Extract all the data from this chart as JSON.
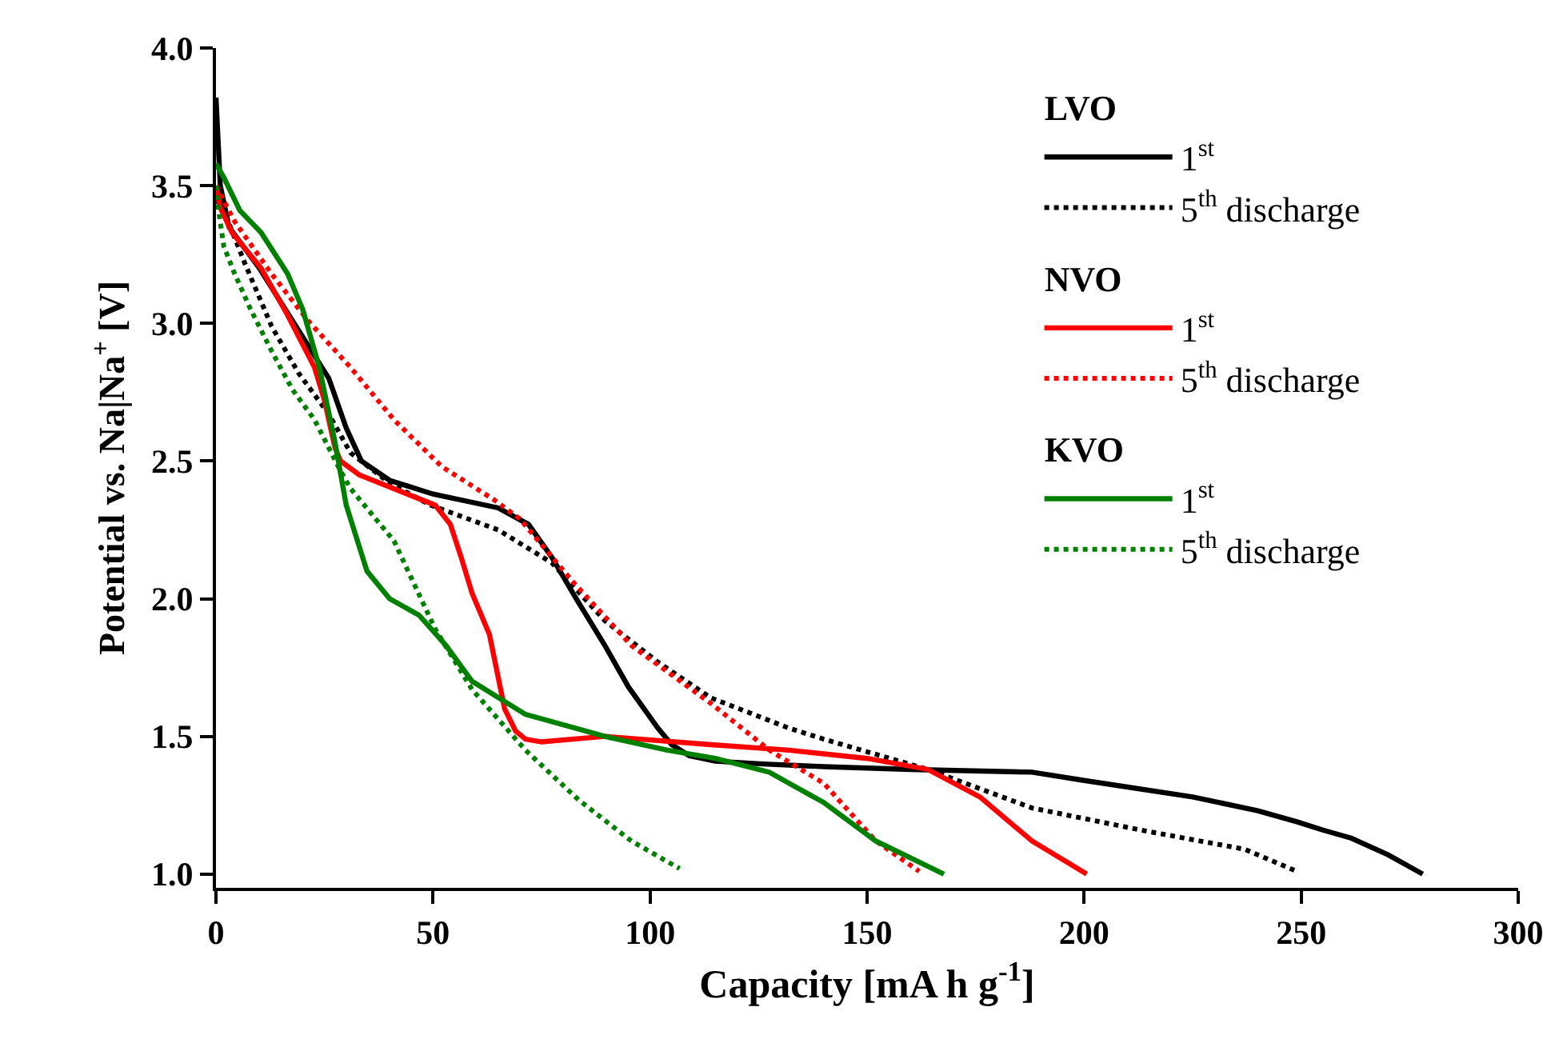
{
  "chart_data": {
    "type": "line",
    "xlabel": "Capacity [mA h g$^{-1}$]",
    "ylabel": "Potential vs. Na|Na$^{+}$ [V]",
    "xlim": [
      0,
      300
    ],
    "xticks": [
      0,
      50,
      100,
      150,
      200,
      250,
      300
    ],
    "ylim": [
      0.95,
      4.0
    ],
    "yticks": [
      {
        "value": 1,
        "label": "1.0"
      },
      1.5,
      {
        "value": 2,
        "label": "2.0"
      },
      2.5,
      {
        "value": 3,
        "label": "3.0"
      },
      3.5,
      {
        "value": 4,
        "label": "4.0"
      }
    ],
    "annotations": [
      "LVO",
      "NVO",
      "KVO"
    ],
    "legend": "top right",
    "marker": "none",
    "series": [
      {
        "name": "1$^{st}$",
        "color": "#000000",
        "line_style": "solid",
        "x": [
          0,
          1,
          3,
          10,
          20,
          26,
          30,
          33.5,
          40,
          50,
          65,
          72,
          77.4,
          83,
          89.6,
          95,
          101.8,
          105,
          109,
          115,
          126,
          140,
          160,
          188,
          200,
          225,
          240,
          249,
          255,
          261.6,
          270,
          278
        ],
        "values": [
          3.82,
          3.5,
          3.35,
          3.2,
          2.95,
          2.8,
          2.62,
          2.5,
          2.43,
          2.38,
          2.33,
          2.27,
          2.15,
          2.0,
          1.83,
          1.68,
          1.53,
          1.47,
          1.43,
          1.41,
          1.4,
          1.39,
          1.38,
          1.37,
          1.34,
          1.28,
          1.23,
          1.19,
          1.16,
          1.13,
          1.07,
          1.0
        ]
      },
      {
        "name": "5$^{th}$ discharge",
        "color": "#000000",
        "line_style": "dotted",
        "x": [
          0,
          1.8,
          6.6,
          12.8,
          19,
          26,
          31,
          40,
          49.4,
          65,
          77.4,
          89.6,
          101.8,
          114,
          132,
          140,
          164,
          188,
          213,
          237,
          249
        ],
        "values": [
          3.45,
          3.41,
          3.22,
          2.99,
          2.82,
          2.67,
          2.53,
          2.42,
          2.34,
          2.25,
          2.13,
          1.92,
          1.77,
          1.64,
          1.53,
          1.49,
          1.38,
          1.24,
          1.16,
          1.09,
          1.01
        ]
      },
      {
        "name": "1$^{st}$",
        "color": "#ff0000",
        "line_style": "solid",
        "x": [
          0,
          1,
          3.7,
          10.4,
          16.5,
          22.7,
          25,
          27.4,
          28.7,
          33,
          40.9,
          50.5,
          54,
          56.5,
          59,
          63,
          66.5,
          69,
          71.3,
          75,
          89.6,
          114,
          132,
          150,
          164,
          176,
          188,
          200.6
        ],
        "values": [
          3.5,
          3.42,
          3.33,
          3.2,
          3.03,
          2.84,
          2.72,
          2.55,
          2.5,
          2.45,
          2.4,
          2.34,
          2.27,
          2.15,
          2.02,
          1.87,
          1.6,
          1.52,
          1.49,
          1.48,
          1.5,
          1.47,
          1.45,
          1.42,
          1.38,
          1.28,
          1.12,
          1.0
        ]
      },
      {
        "name": "5$^{th}$ discharge",
        "color": "#ff0000",
        "line_style": "dotted",
        "x": [
          0,
          4.3,
          12.8,
          21.2,
          31,
          41,
          52,
          64,
          70,
          82.3,
          95.7,
          114,
          127.5,
          140,
          152,
          162
        ],
        "values": [
          3.5,
          3.37,
          3.18,
          3.01,
          2.84,
          2.65,
          2.48,
          2.36,
          2.29,
          2.06,
          1.83,
          1.62,
          1.45,
          1.33,
          1.12,
          1.01
        ]
      },
      {
        "name": "1$^{st}$",
        "color": "#008000",
        "line_style": "solid",
        "x": [
          0,
          1.8,
          5.5,
          10.4,
          16.5,
          20,
          23.8,
          27.4,
          30,
          34.8,
          40,
          46.8,
          53,
          59,
          71.3,
          89.6,
          104,
          115,
          127.5,
          132,
          140,
          152,
          167.7
        ],
        "values": [
          3.58,
          3.53,
          3.41,
          3.33,
          3.18,
          3.05,
          2.84,
          2.57,
          2.34,
          2.1,
          2.0,
          1.94,
          1.83,
          1.7,
          1.58,
          1.5,
          1.45,
          1.42,
          1.37,
          1.33,
          1.26,
          1.12,
          1.0
        ]
      },
      {
        "name": "5$^{th}$ discharge",
        "color": "#008000",
        "line_style": "dotted",
        "x": [
          0,
          0.6,
          1.8,
          4.3,
          8,
          12.8,
          17.6,
          22.7,
          28.5,
          31,
          41,
          50.5,
          59,
          71.3,
          83.5,
          95.7,
          106.8
        ],
        "values": [
          3.5,
          3.41,
          3.28,
          3.18,
          3.05,
          2.9,
          2.76,
          2.65,
          2.47,
          2.4,
          2.21,
          1.89,
          1.67,
          1.45,
          1.27,
          1.12,
          1.02
        ]
      }
    ]
  }
}
